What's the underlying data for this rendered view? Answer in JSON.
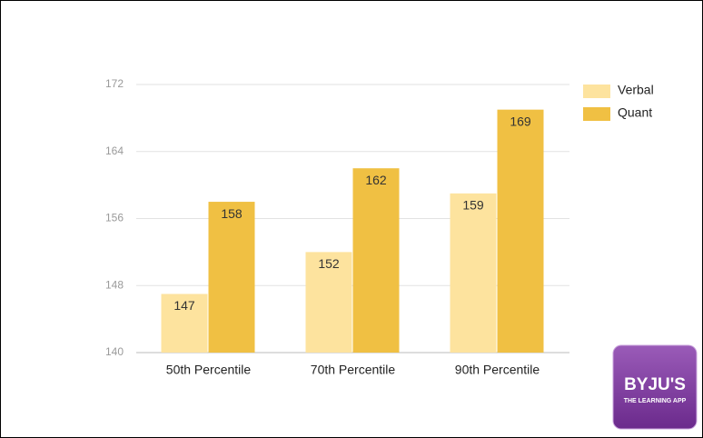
{
  "chart_data": {
    "type": "bar",
    "categories": [
      "50th Percentile",
      "70th Percentile",
      "90th Percentile"
    ],
    "series": [
      {
        "name": "Verbal",
        "color": "#fde39e",
        "values": [
          147,
          152,
          159
        ]
      },
      {
        "name": "Quant",
        "color": "#f0c043",
        "values": [
          158,
          162,
          169
        ]
      }
    ],
    "ylim": [
      140,
      172
    ],
    "yticks": [
      140,
      148,
      156,
      164,
      172
    ],
    "grid": true,
    "legend": "right"
  },
  "logo": {
    "name": "BYJU'S",
    "tagline": "THE LEARNING APP"
  }
}
